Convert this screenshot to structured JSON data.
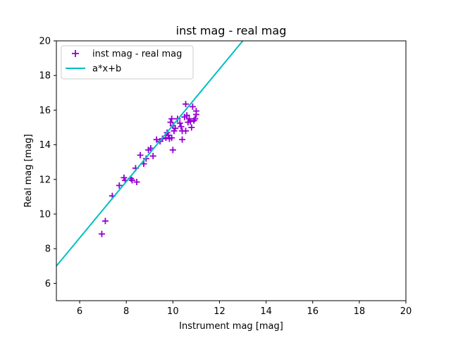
{
  "chart_data": {
    "type": "scatter",
    "title": "inst mag - real mag",
    "xlabel": "Instrument mag [mag]",
    "ylabel": "Real mag [mag]",
    "xlim": [
      5,
      20
    ],
    "ylim": [
      5,
      20
    ],
    "xticks": [
      6,
      8,
      10,
      12,
      14,
      16,
      18,
      20
    ],
    "yticks": [
      6,
      8,
      10,
      12,
      14,
      16,
      18,
      20
    ],
    "grid": false,
    "legend_placement": "upper-left",
    "series": [
      {
        "name": "inst mag - real mag",
        "kind": "scatter",
        "marker": "plus",
        "color": "#9400d3",
        "points": [
          [
            6.95,
            8.85
          ],
          [
            7.1,
            9.6
          ],
          [
            7.4,
            11.05
          ],
          [
            7.7,
            11.65
          ],
          [
            7.9,
            12.1
          ],
          [
            7.95,
            11.95
          ],
          [
            8.2,
            12.05
          ],
          [
            8.25,
            11.95
          ],
          [
            8.4,
            12.65
          ],
          [
            8.45,
            11.85
          ],
          [
            8.6,
            13.4
          ],
          [
            8.75,
            12.9
          ],
          [
            8.85,
            13.2
          ],
          [
            8.95,
            13.7
          ],
          [
            9.05,
            13.8
          ],
          [
            9.15,
            13.35
          ],
          [
            9.3,
            14.3
          ],
          [
            9.45,
            14.2
          ],
          [
            9.55,
            14.35
          ],
          [
            9.7,
            14.4
          ],
          [
            9.75,
            14.7
          ],
          [
            9.8,
            14.55
          ],
          [
            9.85,
            14.35
          ],
          [
            9.9,
            15.3
          ],
          [
            9.95,
            14.4
          ],
          [
            9.95,
            15.5
          ],
          [
            10.0,
            15.1
          ],
          [
            10.0,
            13.7
          ],
          [
            10.05,
            14.8
          ],
          [
            10.1,
            14.95
          ],
          [
            10.2,
            15.5
          ],
          [
            10.3,
            15.25
          ],
          [
            10.35,
            15.05
          ],
          [
            10.4,
            14.3
          ],
          [
            10.4,
            14.8
          ],
          [
            10.5,
            15.6
          ],
          [
            10.55,
            16.35
          ],
          [
            10.55,
            14.8
          ],
          [
            10.6,
            15.7
          ],
          [
            10.65,
            15.3
          ],
          [
            10.7,
            15.5
          ],
          [
            10.75,
            15.35
          ],
          [
            10.8,
            15.0
          ],
          [
            10.85,
            16.2
          ],
          [
            10.9,
            15.4
          ],
          [
            10.95,
            15.5
          ],
          [
            11.0,
            15.95
          ],
          [
            11.0,
            15.75
          ]
        ]
      },
      {
        "name": "a*x+b",
        "kind": "line",
        "color": "#00bfbf",
        "points": [
          [
            5,
            7.0
          ],
          [
            13.0,
            20.0
          ]
        ]
      }
    ]
  }
}
